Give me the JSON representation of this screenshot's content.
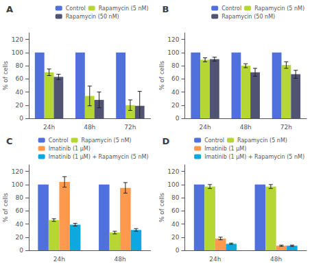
{
  "chart_data": [
    {
      "type": "bar",
      "title": "A",
      "categories": [
        "24h",
        "48h",
        "72h"
      ],
      "series": [
        {
          "name": "Control",
          "values": [
            100,
            100,
            100
          ]
        },
        {
          "name": "Rapamycin (5 nM)",
          "values": [
            70,
            34,
            20
          ],
          "errors": [
            5,
            15,
            8
          ]
        },
        {
          "name": "Rapamycin (50 nM)",
          "values": [
            63,
            28,
            19
          ],
          "errors": [
            4,
            12,
            22
          ]
        }
      ],
      "ylabel": "% of cells",
      "ylim": [
        0,
        130
      ],
      "yticks": [
        0,
        20,
        40,
        60,
        80,
        100,
        120
      ],
      "grid": false,
      "legend": "upper right"
    },
    {
      "type": "bar",
      "title": "B",
      "categories": [
        "24h",
        "48h",
        "72h"
      ],
      "series": [
        {
          "name": "Control",
          "values": [
            100,
            100,
            100
          ]
        },
        {
          "name": "Rapamycin (5 nM)",
          "values": [
            89,
            80,
            81
          ],
          "errors": [
            3,
            3,
            5
          ]
        },
        {
          "name": "Rapamycin (50 nM)",
          "values": [
            90,
            70,
            67
          ],
          "errors": [
            3,
            6,
            6
          ]
        }
      ],
      "ylabel": "% of cells",
      "ylim": [
        0,
        130
      ],
      "yticks": [
        0,
        20,
        40,
        60,
        80,
        100,
        120
      ],
      "grid": false,
      "legend": "upper right"
    },
    {
      "type": "bar",
      "title": "C",
      "categories": [
        "24h",
        "48h"
      ],
      "series": [
        {
          "name": "Control",
          "values": [
            100,
            100
          ]
        },
        {
          "name": "Rapamycin (5 nM)",
          "values": [
            46,
            27
          ],
          "errors": [
            2,
            2
          ]
        },
        {
          "name": "Imatinib (1 μM)",
          "values": [
            104,
            95
          ],
          "errors": [
            8,
            8
          ]
        },
        {
          "name": "Imatinib (1 μM) + Rapamycin (5 nM)",
          "values": [
            39,
            31
          ],
          "errors": [
            2,
            2
          ]
        }
      ],
      "ylabel": "% of cells",
      "ylim": [
        0,
        130
      ],
      "yticks": [
        0,
        20,
        40,
        60,
        80,
        100,
        120
      ],
      "grid": false,
      "legend": "upper right"
    },
    {
      "type": "bar",
      "title": "D",
      "categories": [
        "24h",
        "48h"
      ],
      "series": [
        {
          "name": "Control",
          "values": [
            100,
            100
          ]
        },
        {
          "name": "Rapamycin (5 nM)",
          "values": [
            97,
            97
          ],
          "errors": [
            3,
            3
          ]
        },
        {
          "name": "Imatinib (1 μM)",
          "values": [
            18,
            7
          ],
          "errors": [
            2,
            1
          ]
        },
        {
          "name": "Imatinib (1 μM) + Rapamycin (5 nM)",
          "values": [
            10,
            7
          ],
          "errors": [
            1,
            1
          ]
        }
      ],
      "ylabel": "% of cells",
      "ylim": [
        0,
        130
      ],
      "yticks": [
        0,
        20,
        40,
        60,
        80,
        100,
        120
      ],
      "grid": false,
      "legend": "upper right"
    }
  ]
}
